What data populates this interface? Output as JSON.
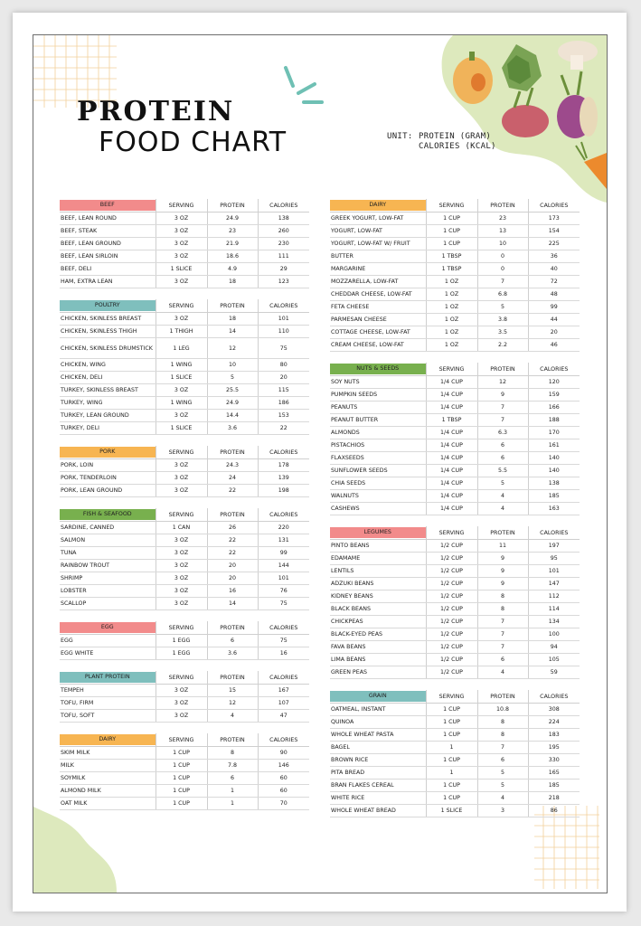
{
  "title": {
    "line1": "PROTEIN",
    "line2": "FOOD CHART"
  },
  "unit": {
    "label": "UNIT:",
    "protein": "PROTEIN (GRAM)",
    "calories": "CALORIES (KCAL)"
  },
  "headers": {
    "serving": "SERVING",
    "protein": "PROTEIN",
    "calories": "CALORIES"
  },
  "colors": {
    "red": "#f28b8b",
    "teal": "#7fbfbd",
    "orange": "#f7b552",
    "green": "#78b04e",
    "background_green": "#dde9bd"
  },
  "left_sections": [
    {
      "category": "BEEF",
      "color": "#f28b8b",
      "rows": [
        [
          "BEEF, LEAN ROUND",
          "3 OZ",
          "24.9",
          "138"
        ],
        [
          "BEEF, STEAK",
          "3 OZ",
          "23",
          "260"
        ],
        [
          "BEEF, LEAN GROUND",
          "3 OZ",
          "21.9",
          "230"
        ],
        [
          "BEEF, LEAN SIRLOIN",
          "3 OZ",
          "18.6",
          "111"
        ],
        [
          "BEEF, DELI",
          "1 SLICE",
          "4.9",
          "29"
        ],
        [
          "HAM, EXTRA LEAN",
          "3 OZ",
          "18",
          "123"
        ]
      ]
    },
    {
      "category": "POULTRY",
      "color": "#7fbfbd",
      "rows": [
        [
          "CHICKEN, SKINLESS BREAST",
          "3 OZ",
          "18",
          "101"
        ],
        [
          "CHICKEN, SKINLESS THIGH",
          "1 THIGH",
          "14",
          "110"
        ],
        [
          "CHICKEN, SKINLESS DRUMSTICK",
          "1 LEG",
          "12",
          "75"
        ],
        [
          "CHICKEN, WING",
          "1 WING",
          "10",
          "80"
        ],
        [
          "CHICKEN, DELI",
          "1 SLICE",
          "5",
          "20"
        ],
        [
          "TURKEY, SKINLESS BREAST",
          "3 OZ",
          "25.5",
          "115"
        ],
        [
          "TURKEY, WING",
          "1 WING",
          "24.9",
          "186"
        ],
        [
          "TURKEY, LEAN GROUND",
          "3 OZ",
          "14.4",
          "153"
        ],
        [
          "TURKEY, DELI",
          "1 SLICE",
          "3.6",
          "22"
        ]
      ]
    },
    {
      "category": "PORK",
      "color": "#f7b552",
      "rows": [
        [
          "PORK, LOIN",
          "3 OZ",
          "24.3",
          "178"
        ],
        [
          "PORK, TENDERLOIN",
          "3 OZ",
          "24",
          "139"
        ],
        [
          "PORK, LEAN GROUND",
          "3 OZ",
          "22",
          "198"
        ]
      ]
    },
    {
      "category": "FISH & SEAFOOD",
      "color": "#78b04e",
      "rows": [
        [
          "SARDINE, CANNED",
          "1 CAN",
          "26",
          "220"
        ],
        [
          "SALMON",
          "3 OZ",
          "22",
          "131"
        ],
        [
          "TUNA",
          "3 OZ",
          "22",
          "99"
        ],
        [
          "RAINBOW TROUT",
          "3 OZ",
          "20",
          "144"
        ],
        [
          "SHRIMP",
          "3 OZ",
          "20",
          "101"
        ],
        [
          "LOBSTER",
          "3 OZ",
          "16",
          "76"
        ],
        [
          "SCALLOP",
          "3 OZ",
          "14",
          "75"
        ]
      ]
    },
    {
      "category": "EGG",
      "color": "#f28b8b",
      "rows": [
        [
          "EGG",
          "1 EGG",
          "6",
          "75"
        ],
        [
          "EGG WHITE",
          "1 EGG",
          "3.6",
          "16"
        ]
      ]
    },
    {
      "category": "PLANT PROTEIN",
      "color": "#7fbfbd",
      "rows": [
        [
          "TEMPEH",
          "3 OZ",
          "15",
          "167"
        ],
        [
          "TOFU, FIRM",
          "3 OZ",
          "12",
          "107"
        ],
        [
          "TOFU, SOFT",
          "3 OZ",
          "4",
          "47"
        ]
      ]
    },
    {
      "category": "DAIRY",
      "color": "#f7b552",
      "rows": [
        [
          "SKIM MILK",
          "1 CUP",
          "8",
          "90"
        ],
        [
          "MILK",
          "1 CUP",
          "7.8",
          "146"
        ],
        [
          "SOYMILK",
          "1 CUP",
          "6",
          "60"
        ],
        [
          "ALMOND MILK",
          "1 CUP",
          "1",
          "60"
        ],
        [
          "OAT MILK",
          "1 CUP",
          "1",
          "70"
        ]
      ]
    }
  ],
  "right_sections": [
    {
      "category": "DAIRY",
      "color": "#f7b552",
      "rows": [
        [
          "GREEK YOGURT, LOW-FAT",
          "1 CUP",
          "23",
          "173"
        ],
        [
          "YOGURT, LOW-FAT",
          "1 CUP",
          "13",
          "154"
        ],
        [
          "YOGURT, LOW-FAT W/ FRUIT",
          "1 CUP",
          "10",
          "225"
        ],
        [
          "BUTTER",
          "1 TBSP",
          "0",
          "36"
        ],
        [
          "MARGARINE",
          "1 TBSP",
          "0",
          "40"
        ],
        [
          "MOZZARELLA, LOW-FAT",
          "1 OZ",
          "7",
          "72"
        ],
        [
          "CHEDDAR CHEESE, LOW-FAT",
          "1 OZ",
          "6.8",
          "48"
        ],
        [
          "FETA CHEESE",
          "1 OZ",
          "5",
          "99"
        ],
        [
          "PARMESAN CHEESE",
          "1 OZ",
          "3.8",
          "44"
        ],
        [
          "COTTAGE CHEESE, LOW-FAT",
          "1 OZ",
          "3.5",
          "20"
        ],
        [
          "CREAM CHEESE, LOW-FAT",
          "1 OZ",
          "2.2",
          "46"
        ]
      ]
    },
    {
      "category": "NUTS & SEEDS",
      "color": "#78b04e",
      "rows": [
        [
          "SOY NUTS",
          "1/4 CUP",
          "12",
          "120"
        ],
        [
          "PUMPKIN SEEDS",
          "1/4 CUP",
          "9",
          "159"
        ],
        [
          "PEANUTS",
          "1/4 CUP",
          "7",
          "166"
        ],
        [
          "PEANUT BUTTER",
          "1 TBSP",
          "7",
          "188"
        ],
        [
          "ALMONDS",
          "1/4 CUP",
          "6.3",
          "170"
        ],
        [
          "PISTACHIOS",
          "1/4 CUP",
          "6",
          "161"
        ],
        [
          "FLAXSEEDS",
          "1/4 CUP",
          "6",
          "140"
        ],
        [
          "SUNFLOWER SEEDS",
          "1/4 CUP",
          "5.5",
          "140"
        ],
        [
          "CHIA SEEDS",
          "1/4 CUP",
          "5",
          "138"
        ],
        [
          "WALNUTS",
          "1/4 CUP",
          "4",
          "185"
        ],
        [
          "CASHEWS",
          "1/4 CUP",
          "4",
          "163"
        ]
      ]
    },
    {
      "category": "LEGUMES",
      "color": "#f28b8b",
      "rows": [
        [
          "PINTO BEANS",
          "1/2 CUP",
          "11",
          "197"
        ],
        [
          "EDAMAME",
          "1/2 CUP",
          "9",
          "95"
        ],
        [
          "LENTILS",
          "1/2 CUP",
          "9",
          "101"
        ],
        [
          "ADZUKI BEANS",
          "1/2 CUP",
          "9",
          "147"
        ],
        [
          "KIDNEY BEANS",
          "1/2 CUP",
          "8",
          "112"
        ],
        [
          "BLACK BEANS",
          "1/2 CUP",
          "8",
          "114"
        ],
        [
          "CHICKPEAS",
          "1/2 CUP",
          "7",
          "134"
        ],
        [
          "BLACK-EYED PEAS",
          "1/2 CUP",
          "7",
          "100"
        ],
        [
          "FAVA BEANS",
          "1/2 CUP",
          "7",
          "94"
        ],
        [
          "LIMA BEANS",
          "1/2 CUP",
          "6",
          "105"
        ],
        [
          "GREEN PEAS",
          "1/2 CUP",
          "4",
          "59"
        ]
      ]
    },
    {
      "category": "GRAIN",
      "color": "#7fbfbd",
      "rows": [
        [
          "OATMEAL, INSTANT",
          "1 CUP",
          "10.8",
          "308"
        ],
        [
          "QUINOA",
          "1 CUP",
          "8",
          "224"
        ],
        [
          "WHOLE WHEAT PASTA",
          "1 CUP",
          "8",
          "183"
        ],
        [
          "BAGEL",
          "1",
          "7",
          "195"
        ],
        [
          "BROWN RICE",
          "1 CUP",
          "6",
          "330"
        ],
        [
          "PITA BREAD",
          "1",
          "5",
          "165"
        ],
        [
          "BRAN FLAKES CEREAL",
          "1 CUP",
          "5",
          "185"
        ],
        [
          "WHITE RICE",
          "1 CUP",
          "4",
          "218"
        ],
        [
          "WHOLE WHEAT BREAD",
          "1 SLICE",
          "3",
          "86"
        ]
      ]
    }
  ]
}
